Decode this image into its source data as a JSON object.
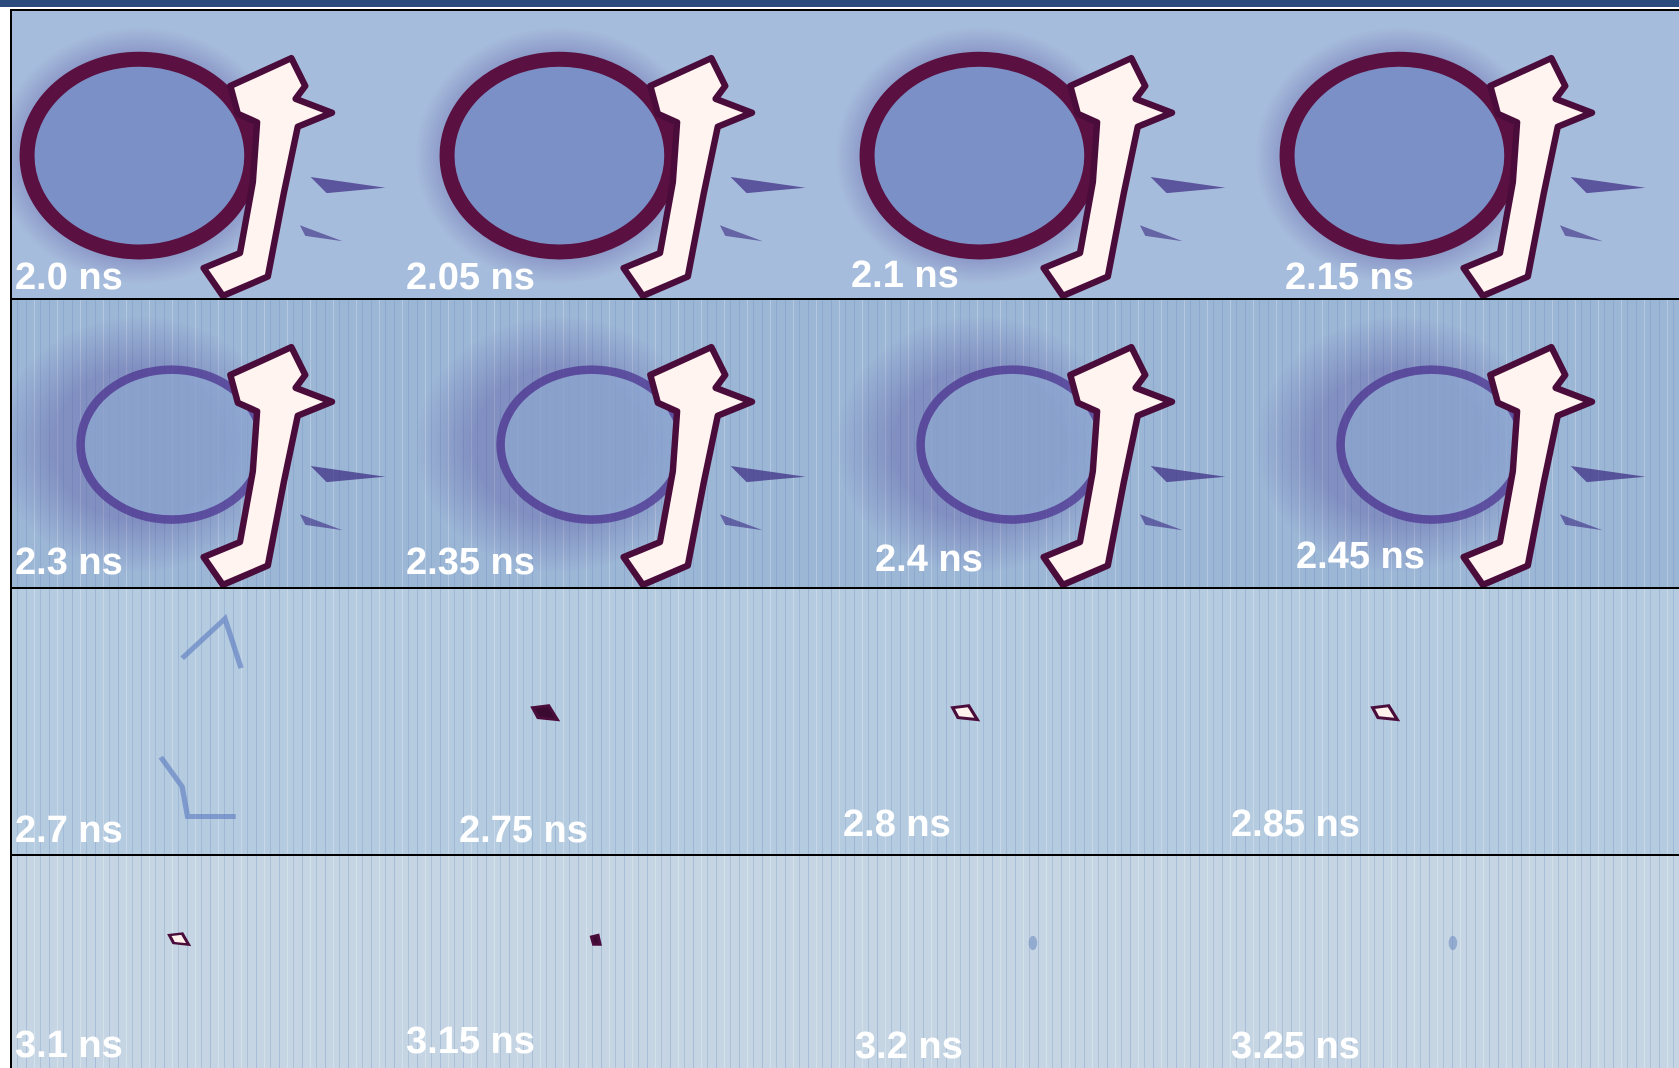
{
  "rows": [
    [
      "2.0 ns",
      "2.05 ns",
      "2.1 ns",
      "2.15 ns"
    ],
    [
      "2.3 ns",
      "2.35 ns",
      "2.4 ns",
      "2.45 ns"
    ],
    [
      "2.7 ns",
      "2.75 ns",
      "2.8 ns",
      "2.85 ns"
    ],
    [
      "3.1 ns",
      "3.15 ns",
      "3.2 ns",
      "3.25 ns"
    ]
  ]
}
